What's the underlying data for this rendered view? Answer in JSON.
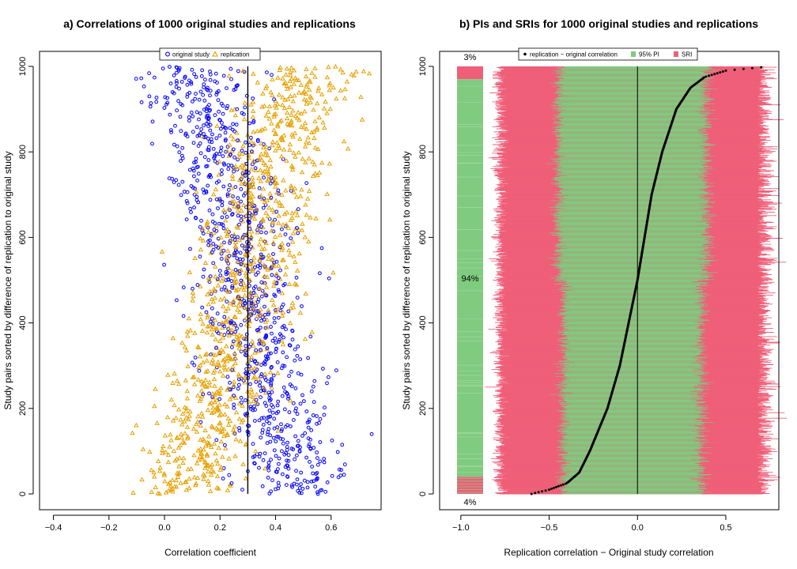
{
  "chart_data": [
    {
      "panel": "a",
      "type": "scatter",
      "title": "a) Correlations of 1000 original studies and replications",
      "xlabel": "Correlation coefficient",
      "ylabel": "Study pairs sorted by difference of replication to original study",
      "xlim": [
        -0.45,
        0.78
      ],
      "ylim": [
        0,
        1000
      ],
      "xticks": [
        -0.4,
        -0.2,
        0.0,
        0.2,
        0.4,
        0.6
      ],
      "xtick_labels": [
        "−0.4",
        "−0.2",
        "0.0",
        "0.2",
        "0.4",
        "0.6"
      ],
      "yticks": [
        0,
        200,
        400,
        600,
        800,
        1000
      ],
      "ytick_labels": [
        "0",
        "200",
        "400",
        "600",
        "800",
        "1000"
      ],
      "reference_line_x": 0.3,
      "legend": {
        "position": "top",
        "entries": [
          "original study",
          "replication"
        ]
      },
      "series": [
        {
          "name": "original study",
          "marker": "circle",
          "color": "#0000ff",
          "n": 1000,
          "mean_by_rank": [
            [
              0,
              0.46
            ],
            [
              100,
              0.44
            ],
            [
              300,
              0.36
            ],
            [
              500,
              0.3
            ],
            [
              700,
              0.24
            ],
            [
              900,
              0.15
            ],
            [
              1000,
              0.08
            ]
          ],
          "spread": 0.1
        },
        {
          "name": "replication",
          "marker": "triangle",
          "color": "#e6a100",
          "n": 1000,
          "mean_by_rank": [
            [
              0,
              0.08
            ],
            [
              100,
              0.13
            ],
            [
              300,
              0.22
            ],
            [
              500,
              0.3
            ],
            [
              700,
              0.36
            ],
            [
              900,
              0.44
            ],
            [
              1000,
              0.52
            ]
          ],
          "spread": 0.1
        }
      ]
    },
    {
      "panel": "b",
      "type": "line",
      "title": "b) PIs and SRIs for 1000 original studies and replications",
      "xlabel": "Replication correlation − Original study correlation",
      "ylabel": "Study pairs sorted by difference of replication to original study",
      "xlim": [
        -1.12,
        0.8
      ],
      "ylim": [
        0,
        1000
      ],
      "xticks": [
        -1.0,
        -0.5,
        0.0,
        0.5
      ],
      "xtick_labels": [
        "−1.0",
        "−0.5",
        "0.0",
        "0.5"
      ],
      "yticks": [
        0,
        200,
        400,
        600,
        800,
        1000
      ],
      "ytick_labels": [
        "0",
        "200",
        "400",
        "600",
        "800",
        "1000"
      ],
      "reference_line_x": 0.0,
      "legend": {
        "position": "top",
        "entries": [
          "replication − original correlation",
          "95% PI",
          "SRI"
        ]
      },
      "colors": {
        "pi": "#7fcb7f",
        "sri": "#ef5f78",
        "points": "#000000"
      },
      "pi_half_width": 0.42,
      "sri_half_width": 0.78,
      "difference_by_rank": [
        [
          0,
          -0.6
        ],
        [
          10,
          -0.5
        ],
        [
          25,
          -0.4
        ],
        [
          50,
          -0.33
        ],
        [
          100,
          -0.27
        ],
        [
          200,
          -0.17
        ],
        [
          300,
          -0.1
        ],
        [
          400,
          -0.05
        ],
        [
          500,
          0.0
        ],
        [
          600,
          0.04
        ],
        [
          700,
          0.08
        ],
        [
          800,
          0.14
        ],
        [
          900,
          0.22
        ],
        [
          950,
          0.3
        ],
        [
          975,
          0.38
        ],
        [
          990,
          0.5
        ],
        [
          1000,
          0.75
        ]
      ],
      "summary_bar": {
        "segments": [
          {
            "label": "4%",
            "fraction": 0.04,
            "category": "below"
          },
          {
            "label": "94%",
            "fraction": 0.94,
            "category": "inside"
          },
          {
            "label": "3%",
            "fraction": 0.03,
            "category": "above"
          }
        ]
      }
    }
  ]
}
